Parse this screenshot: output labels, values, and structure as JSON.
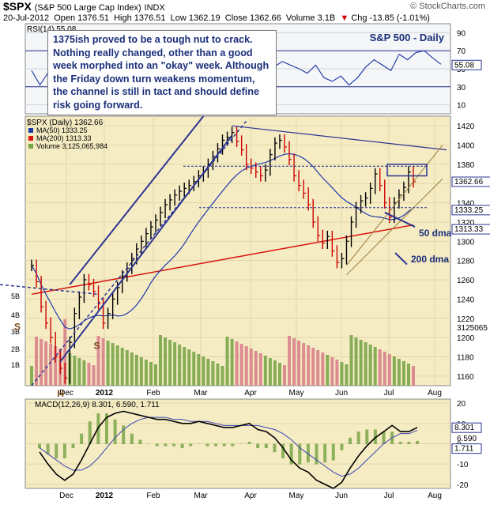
{
  "header": {
    "symbol": "$SPX",
    "name": "(S&P 500 Large Cap Index)",
    "exchange": "INDX",
    "date": "20-Jul-2012",
    "open": "Open 1376.51",
    "high": "High 1376.51",
    "low": "Low 1362.19",
    "close": "Close 1362.66",
    "volume": "Volume 3.1B",
    "change": "Chg -13.85 (-1.01%)",
    "change_arrow": "▼",
    "watermark": "© StockCharts.com"
  },
  "annotation": "1375ish proved to be a tough nut to crack. Nothing really changed, other than a good week morphed into an \"okay\" week. Although the Friday down turn weakens momentum, the channel is still in tact and should define risk going forward.",
  "colors": {
    "price_bg": "#f6ecc4",
    "panel_bg": "#f4f6f8",
    "trendline": "#2c3592",
    "ma50": "#1d3aa8",
    "ma200": "#d8160f",
    "volume_up": "#7aa64a",
    "volume_down": "#d9828c",
    "price_up": "#000000",
    "price_down": "#cc0000",
    "label_box": "#2c3592"
  },
  "chart_data": [
    {
      "type": "line",
      "panel": "RSI",
      "label": "RSI(14) 55.08",
      "panel_title": "S&P 500 - Daily",
      "ylim": [
        0,
        100
      ],
      "y_ticks": [
        10,
        30,
        50,
        70,
        90
      ],
      "reference_lines": [
        30,
        70
      ],
      "last_value_label": "55.08",
      "series": [
        {
          "values": [
            48,
            32,
            46,
            60,
            42,
            45,
            62,
            58,
            66,
            72,
            70,
            74,
            68,
            71,
            66,
            72,
            75,
            70,
            66,
            69,
            72,
            63,
            70,
            73,
            66,
            70,
            64,
            62,
            60,
            52,
            58,
            54,
            50,
            45,
            54,
            40,
            36,
            42,
            32,
            40,
            52,
            60,
            54,
            48,
            66,
            60,
            68,
            70,
            62,
            55
          ]
        }
      ]
    },
    {
      "type": "candlestick",
      "panel": "Price",
      "title": "$SPX (Daily) 1362.66",
      "legend": [
        "MA(50) 1333.25",
        "MA(200) 1313.33",
        "Volume 3,125,065,984"
      ],
      "ylim": [
        1150,
        1430
      ],
      "y_ticks": [
        1160,
        1180,
        1200,
        1220,
        1240,
        1260,
        1280,
        1300,
        1320,
        1340,
        1360,
        1380,
        1400,
        1420
      ],
      "volume_ticks": [
        "1B",
        "2B",
        "3B",
        "4B",
        "5B"
      ],
      "x_ticks": [
        "Dec",
        "2012",
        "Feb",
        "Mar",
        "Apr",
        "May",
        "Jun",
        "Jul",
        "Aug"
      ],
      "last_labels": [
        "1362.66",
        "1333.25",
        "1313.33",
        "3125065"
      ],
      "annotations": [
        "50 dma",
        "200 dma",
        "S",
        "H",
        "S"
      ],
      "close": [
        1275,
        1258,
        1232,
        1215,
        1200,
        1180,
        1168,
        1158,
        1195,
        1225,
        1242,
        1260,
        1255,
        1248,
        1235,
        1215,
        1225,
        1240,
        1252,
        1264,
        1272,
        1282,
        1292,
        1300,
        1308,
        1315,
        1322,
        1330,
        1338,
        1343,
        1348,
        1352,
        1355,
        1358,
        1362,
        1368,
        1372,
        1380,
        1388,
        1396,
        1405,
        1408,
        1413,
        1404,
        1395,
        1380,
        1376,
        1372,
        1368,
        1374,
        1390,
        1402,
        1405,
        1398,
        1385,
        1368,
        1358,
        1350,
        1338,
        1320,
        1306,
        1298,
        1305,
        1290,
        1278,
        1282,
        1300,
        1320,
        1335,
        1342,
        1345,
        1355,
        1370,
        1358,
        1340,
        1325,
        1340,
        1348,
        1356,
        1372,
        1362
      ]
    },
    {
      "type": "line",
      "panel": "MACD",
      "label": "MACD(12,26,9) 8.301, 6.590, 1.711",
      "ylim": [
        -22,
        22
      ],
      "y_ticks": [
        -20,
        -10,
        0,
        10,
        20
      ],
      "last_value_labels": [
        "8.301",
        "6.590",
        "1.711"
      ],
      "series": [
        {
          "name": "MACD",
          "values": [
            -4,
            -10,
            -15,
            -18,
            -15,
            -8,
            0,
            8,
            13,
            15,
            16,
            15,
            14,
            13,
            12,
            12,
            11,
            10,
            10,
            11,
            10,
            9,
            8,
            8,
            9,
            10,
            7,
            6,
            3,
            -2,
            -8,
            -12,
            -14,
            -18,
            -20,
            -22,
            -19,
            -12,
            -6,
            -1,
            3,
            6,
            9,
            6,
            6,
            8
          ]
        },
        {
          "name": "Signal",
          "values": [
            -2,
            -5,
            -8,
            -11,
            -13,
            -13,
            -11,
            -7,
            -2,
            3,
            7,
            10,
            12,
            13,
            13,
            13,
            12,
            12,
            11,
            11,
            11,
            10,
            9,
            9,
            9,
            9,
            9,
            8,
            7,
            5,
            2,
            -2,
            -5,
            -8,
            -11,
            -14,
            -16,
            -15,
            -12,
            -8,
            -4,
            0,
            3,
            5,
            5,
            6.6
          ]
        }
      ]
    }
  ]
}
